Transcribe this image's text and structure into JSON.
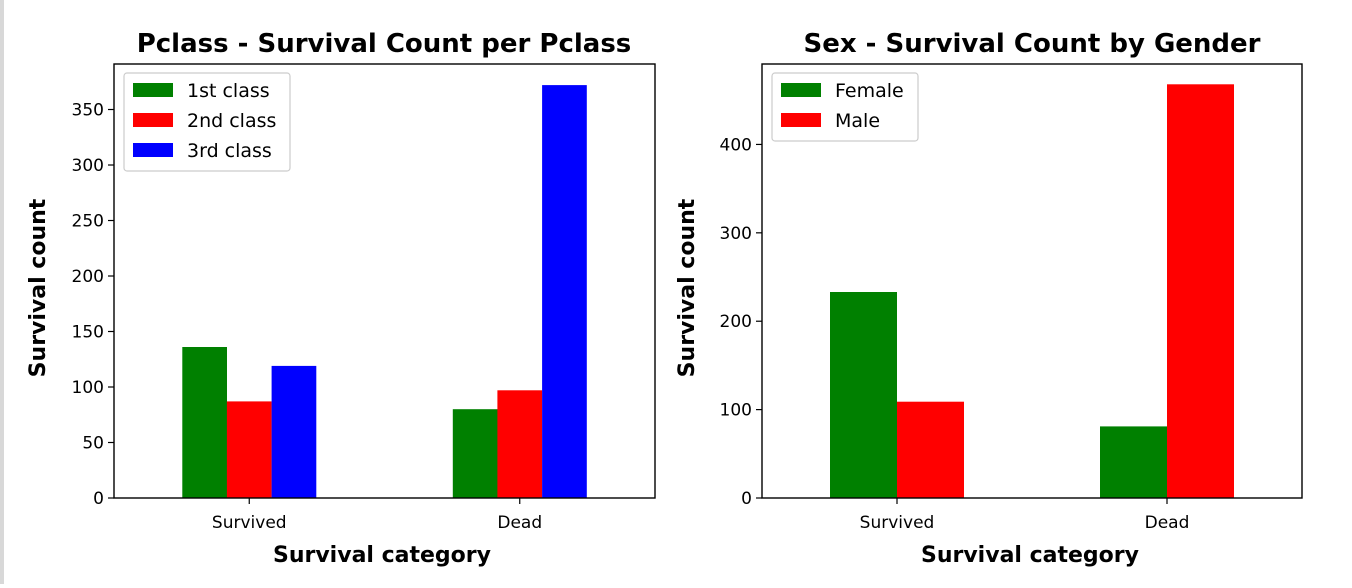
{
  "chart_data": [
    {
      "type": "bar",
      "title": "Pclass - Survival Count per Pclass",
      "xlabel": "Survival category",
      "ylabel": "Survival count",
      "categories": [
        "Survived",
        "Dead"
      ],
      "series": [
        {
          "name": "1st class",
          "color": "#008000",
          "values": [
            136,
            80
          ]
        },
        {
          "name": "2nd class",
          "color": "#ff0000",
          "values": [
            87,
            97
          ]
        },
        {
          "name": "3rd class",
          "color": "#0000ff",
          "values": [
            119,
            372
          ]
        }
      ],
      "ylim": [
        0,
        391
      ],
      "yticks": [
        0,
        50,
        100,
        150,
        200,
        250,
        300,
        350
      ],
      "grid": false,
      "legend": "top-left"
    },
    {
      "type": "bar",
      "title": "Sex - Survival Count by Gender",
      "xlabel": "Survival category",
      "ylabel": "Survival count",
      "categories": [
        "Survived",
        "Dead"
      ],
      "series": [
        {
          "name": "Female",
          "color": "#008000",
          "values": [
            233,
            81
          ]
        },
        {
          "name": "Male",
          "color": "#ff0000",
          "values": [
            109,
            468
          ]
        }
      ],
      "ylim": [
        0,
        491
      ],
      "yticks": [
        0,
        100,
        200,
        300,
        400
      ],
      "grid": false,
      "legend": "top-left"
    }
  ]
}
